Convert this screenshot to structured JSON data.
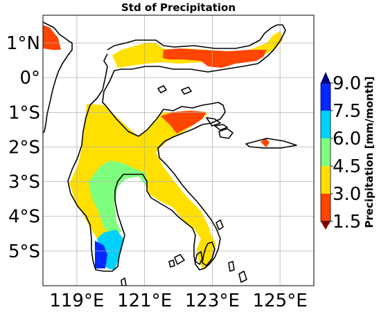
{
  "title": "Std of Precipitation",
  "map": {
    "lon_range": [
      118.0,
      126.0
    ],
    "lat_range": [
      -6.0,
      1.8
    ],
    "gridlines": true,
    "xticks": [
      {
        "value": 119,
        "label": "119°E"
      },
      {
        "value": 121,
        "label": "121°E"
      },
      {
        "value": 123,
        "label": "123°E"
      },
      {
        "value": 125,
        "label": "125°E"
      }
    ],
    "yticks": [
      {
        "value": 1,
        "label": "1°N"
      },
      {
        "value": 0,
        "label": "0°"
      },
      {
        "value": -1,
        "label": "1°S"
      },
      {
        "value": -2,
        "label": "2°S"
      },
      {
        "value": -3,
        "label": "3°S"
      },
      {
        "value": -4,
        "label": "4°S"
      },
      {
        "value": -5,
        "label": "5°S"
      }
    ],
    "region": "Sulawesi"
  },
  "colorbar": {
    "label": "Precipitation [mm/month]",
    "ticks": [
      "1.5",
      "3.0",
      "4.5",
      "6.0",
      "7.5",
      "9.0"
    ],
    "colors": [
      "#ff4500",
      "#ffe000",
      "#7fff7f",
      "#00d2ff",
      "#0028ff"
    ],
    "extend_low_color": "#7f0000",
    "extend_high_color": "#00007f"
  }
}
